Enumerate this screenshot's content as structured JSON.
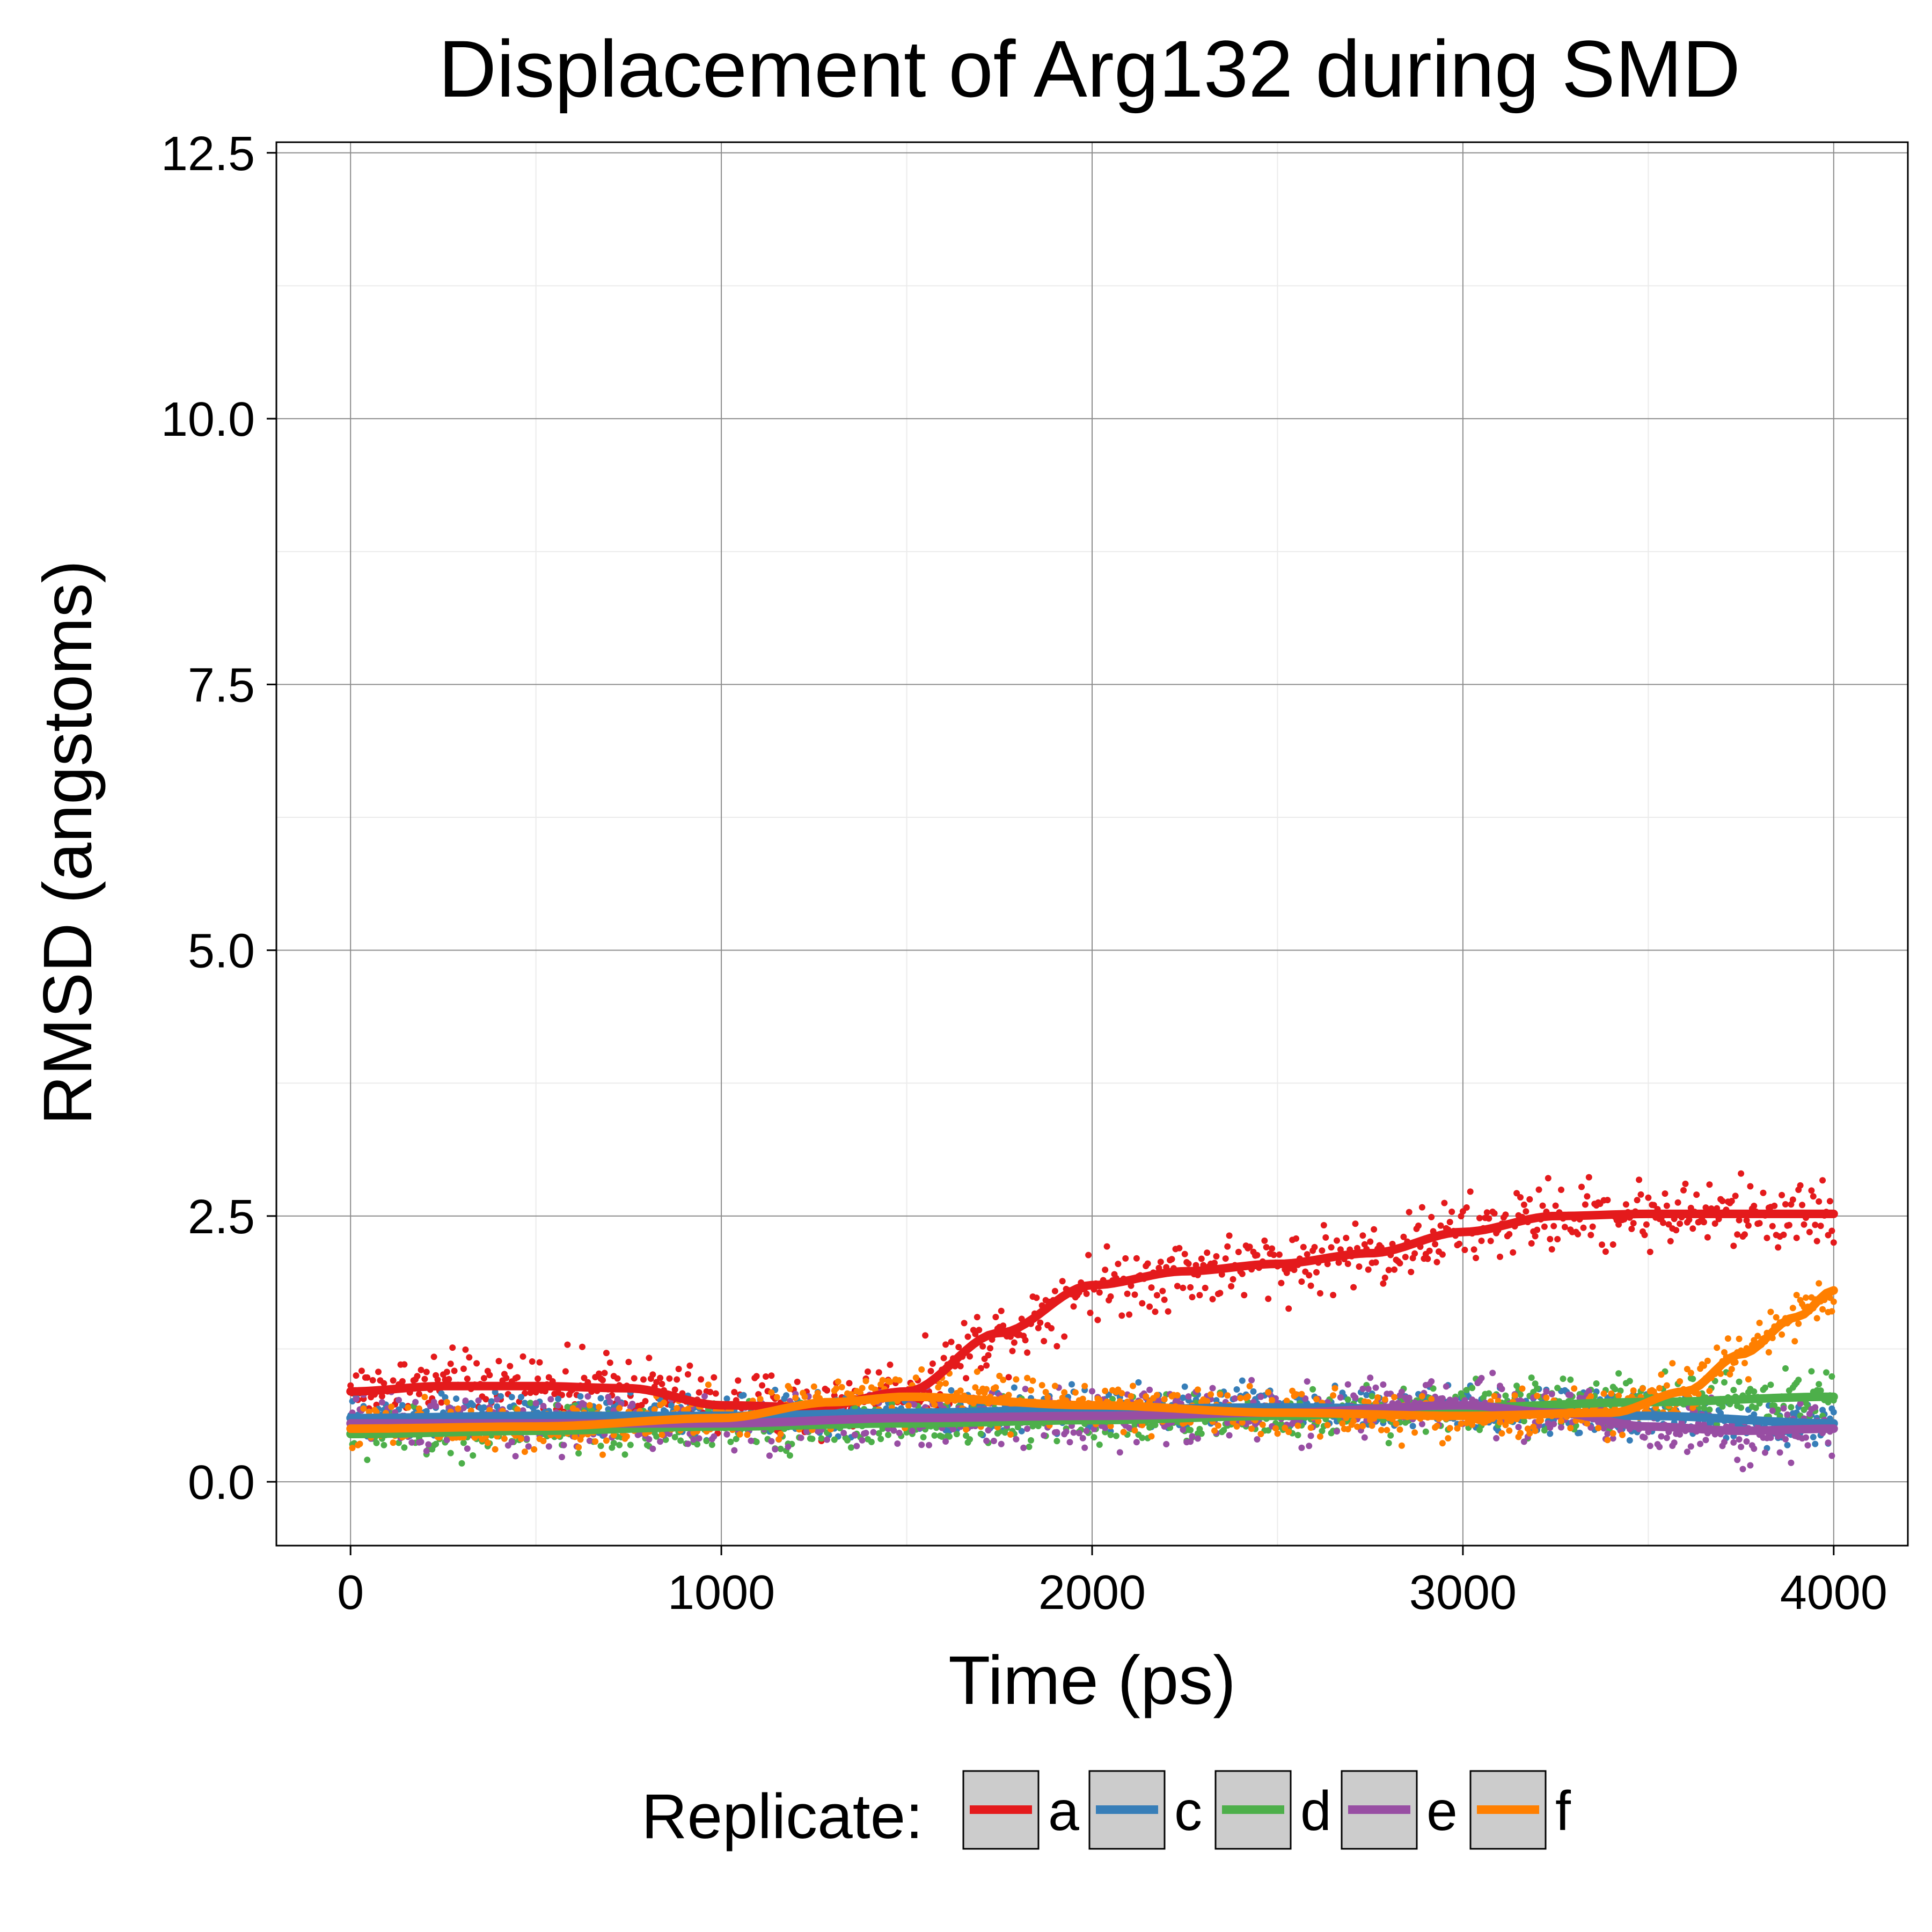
{
  "chart_data": {
    "type": "scatter",
    "title": "Displacement of Arg132 during SMD",
    "xlabel": "Time (ps)",
    "ylabel": "RMSD (angstoms)",
    "xlim": [
      -200,
      4200
    ],
    "ylim": [
      -0.6,
      12.6
    ],
    "xticks": [
      0,
      1000,
      2000,
      3000,
      4000
    ],
    "xtick_labels": [
      "0",
      "1000",
      "2000",
      "3000",
      "4000"
    ],
    "yticks": [
      0.0,
      2.5,
      5.0,
      7.5,
      10.0,
      12.5
    ],
    "ytick_labels": [
      "0.0",
      "2.5",
      "5.0",
      "7.5",
      "10.0",
      "12.5"
    ],
    "grid": true,
    "legend": {
      "title": "Replicate:",
      "placement": "bottom"
    },
    "series": [
      {
        "name": "a",
        "color": "#e41a1c",
        "noise": 0.28,
        "trend_x": [
          0,
          250,
          500,
          750,
          1000,
          1250,
          1500,
          1750,
          2000,
          2250,
          2500,
          2750,
          3000,
          3250,
          3500,
          3750,
          4000
        ],
        "trend_y": [
          0.85,
          0.9,
          0.9,
          0.88,
          0.72,
          0.7,
          0.85,
          1.4,
          1.85,
          1.98,
          2.05,
          2.15,
          2.35,
          2.5,
          2.52,
          2.52,
          2.52
        ]
      },
      {
        "name": "c",
        "color": "#377eb8",
        "noise": 0.18,
        "trend_x": [
          0,
          500,
          1000,
          1500,
          2000,
          2500,
          3000,
          3500,
          4000
        ],
        "trend_y": [
          0.6,
          0.62,
          0.62,
          0.65,
          0.68,
          0.7,
          0.68,
          0.62,
          0.55
        ]
      },
      {
        "name": "d",
        "color": "#4daf4a",
        "noise": 0.2,
        "trend_x": [
          0,
          500,
          1000,
          1500,
          2000,
          2500,
          3000,
          3500,
          4000
        ],
        "trend_y": [
          0.45,
          0.48,
          0.52,
          0.55,
          0.58,
          0.62,
          0.7,
          0.75,
          0.8
        ]
      },
      {
        "name": "e",
        "color": "#984ea3",
        "noise": 0.22,
        "trend_x": [
          0,
          500,
          1000,
          1500,
          2000,
          2500,
          3000,
          3250,
          3500,
          3750,
          4000
        ],
        "trend_y": [
          0.55,
          0.55,
          0.55,
          0.6,
          0.62,
          0.65,
          0.72,
          0.65,
          0.52,
          0.48,
          0.5
        ]
      },
      {
        "name": "f",
        "color": "#ff7f00",
        "noise": 0.2,
        "trend_x": [
          0,
          500,
          1000,
          1300,
          1500,
          2000,
          2500,
          3000,
          3400,
          3600,
          3750,
          3900,
          4000
        ],
        "trend_y": [
          0.5,
          0.52,
          0.6,
          0.75,
          0.8,
          0.72,
          0.65,
          0.62,
          0.65,
          0.85,
          1.2,
          1.55,
          1.8
        ]
      }
    ]
  }
}
